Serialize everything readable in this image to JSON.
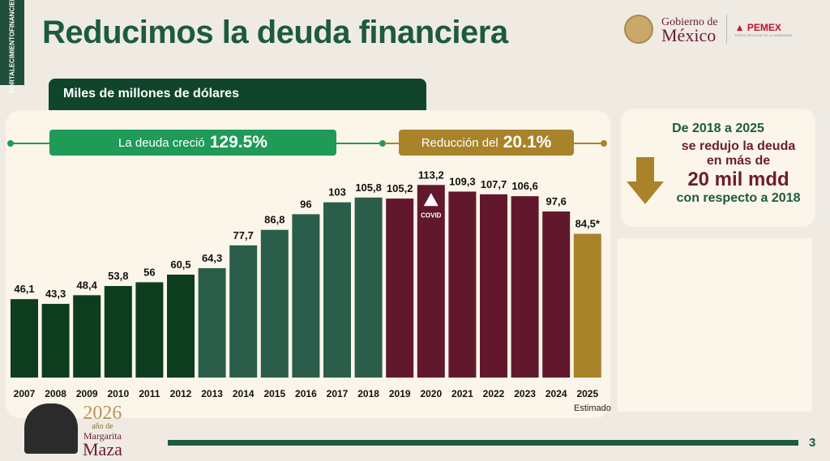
{
  "sidebar": {
    "label_top": "FORTALECIMIENTO",
    "label_bottom": "FINANCIERO"
  },
  "header": {
    "title": "Reducimos la deuda financiera",
    "logo_gob_line1": "Gobierno de",
    "logo_gob_line2": "México",
    "logo_pemex": "PEMEX",
    "logo_pemex_tag": "POR EL RESCATE DE LA SOBERANÍA"
  },
  "unit_label": "Miles de millones de dólares",
  "growth": {
    "text": "La deuda creció",
    "value": "129.5%",
    "color": "#1f9a57"
  },
  "reduction": {
    "text": "Reducción del",
    "value": "20.1%",
    "color": "#a9832a"
  },
  "callout": {
    "line1": "De 2018 a 2025",
    "line2": "se redujo la deuda",
    "line3": "en más de",
    "line4": "20 mil mdd",
    "line5": "con respecto a 2018"
  },
  "chart_data": {
    "type": "bar",
    "categories": [
      "2007",
      "2008",
      "2009",
      "2010",
      "2011",
      "2012",
      "2013",
      "2014",
      "2015",
      "2016",
      "2017",
      "2018",
      "2019",
      "2020",
      "2021",
      "2022",
      "2023",
      "2024",
      "2025"
    ],
    "values": [
      46.1,
      43.3,
      48.4,
      53.8,
      56,
      60.5,
      64.3,
      77.7,
      86.8,
      96,
      103,
      105.8,
      105.2,
      113.2,
      109.3,
      107.7,
      106.6,
      97.6,
      84.5
    ],
    "labels": [
      "46,1",
      "43,3",
      "48,4",
      "53,8",
      "56",
      "60,5",
      "64,3",
      "77,7",
      "86,8",
      "96",
      "103",
      "105,8",
      "105,2",
      "113,2",
      "109,3",
      "107,7",
      "106,6",
      "97,6",
      "84,5*"
    ],
    "colors": [
      "#0d3d1e",
      "#0d3d1e",
      "#0d3d1e",
      "#0d3d1e",
      "#0d3d1e",
      "#0d3d1e",
      "#2a5e4b",
      "#2a5e4b",
      "#2a5e4b",
      "#2a5e4b",
      "#2a5e4b",
      "#2a5e4b",
      "#62182c",
      "#62182c",
      "#62182c",
      "#62182c",
      "#62182c",
      "#62182c",
      "#a9832a"
    ],
    "annotation": "COVID",
    "note": "Estimado",
    "ylim": [
      0,
      120
    ],
    "grid": false
  },
  "footer": {
    "year": "2026",
    "line2": "año de",
    "line3": "Margarita",
    "line4": "Maza",
    "page": "3"
  }
}
